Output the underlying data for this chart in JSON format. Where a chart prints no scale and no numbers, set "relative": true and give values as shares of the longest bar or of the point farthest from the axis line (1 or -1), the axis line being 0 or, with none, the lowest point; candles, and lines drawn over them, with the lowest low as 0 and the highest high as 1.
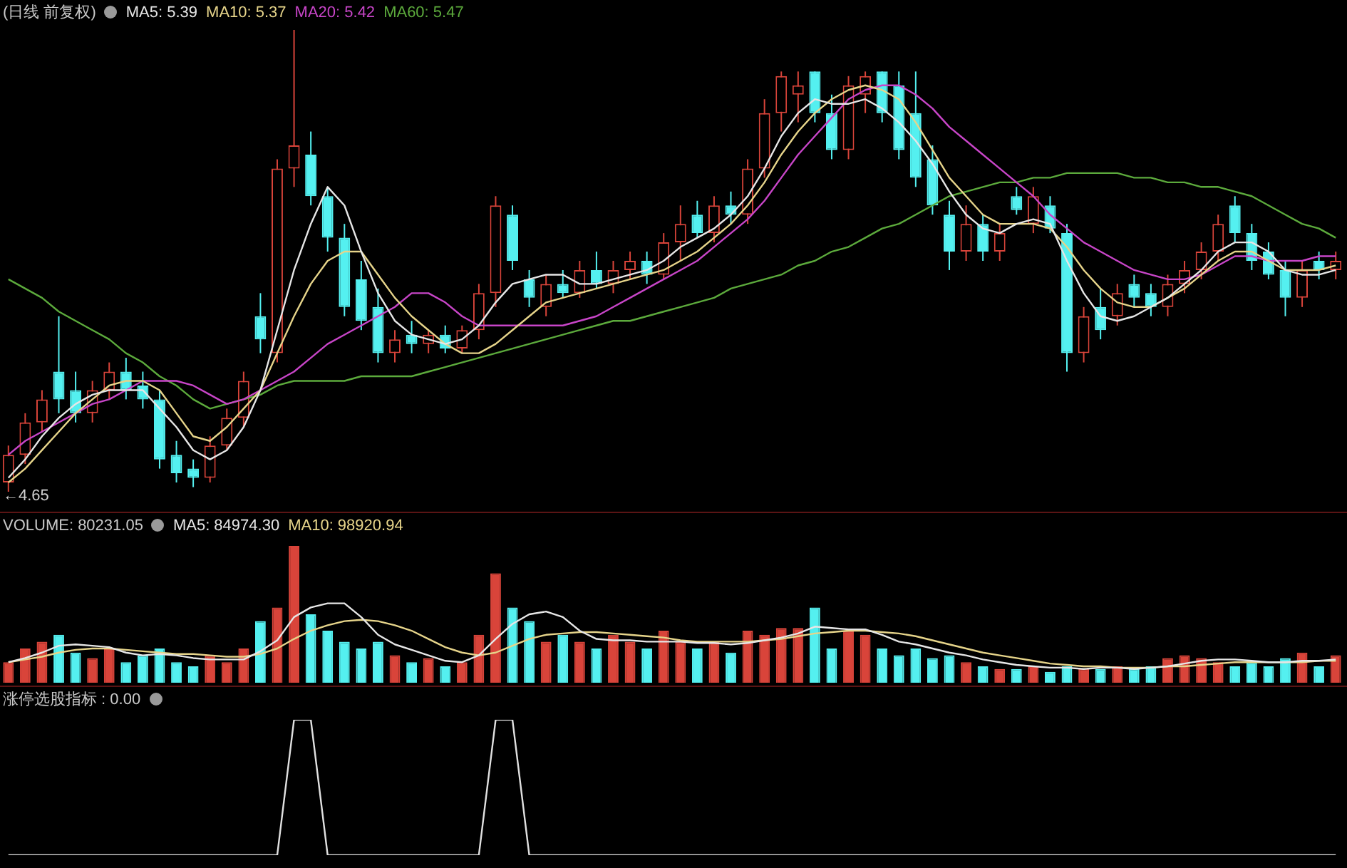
{
  "chart_data": [
    {
      "type": "candlestick",
      "title": "(日线 前复权)",
      "relative": true,
      "legend": "top left",
      "categories": [
        null,
        null,
        null,
        null,
        null,
        null,
        null,
        null,
        null,
        null,
        null,
        null,
        null,
        null,
        null,
        null,
        null,
        null,
        null,
        null,
        null,
        null,
        null,
        null,
        null,
        null,
        null,
        null,
        null,
        null,
        null,
        null,
        null,
        null,
        null,
        null,
        null,
        null,
        null,
        null,
        null,
        null,
        null,
        null,
        null,
        null,
        null,
        null,
        null,
        null,
        null,
        null,
        null,
        null,
        null,
        null,
        null,
        null,
        null,
        null,
        null,
        null,
        null,
        null,
        null,
        null,
        null,
        null,
        null,
        null,
        null,
        null,
        null,
        null,
        null,
        null,
        null,
        null,
        null,
        null
      ],
      "annotations": [
        "←4.65"
      ],
      "series": [
        {
          "ohlc": [
            [
              0.02,
              0.1,
              0.0,
              0.08
            ],
            [
              0.08,
              0.17,
              0.06,
              0.15
            ],
            [
              0.15,
              0.22,
              0.13,
              0.2
            ],
            [
              0.26,
              0.38,
              0.17,
              0.2
            ],
            [
              0.22,
              0.26,
              0.15,
              0.17
            ],
            [
              0.17,
              0.24,
              0.15,
              0.22
            ],
            [
              0.22,
              0.28,
              0.2,
              0.26
            ],
            [
              0.26,
              0.29,
              0.2,
              0.22
            ],
            [
              0.23,
              0.26,
              0.18,
              0.2
            ],
            [
              0.2,
              0.22,
              0.05,
              0.07
            ],
            [
              0.08,
              0.11,
              0.02,
              0.04
            ],
            [
              0.05,
              0.07,
              0.01,
              0.03
            ],
            [
              0.03,
              0.12,
              0.02,
              0.1
            ],
            [
              0.1,
              0.18,
              0.09,
              0.16
            ],
            [
              0.16,
              0.26,
              0.14,
              0.24
            ],
            [
              0.38,
              0.43,
              0.3,
              0.33
            ],
            [
              0.3,
              0.72,
              0.28,
              0.7
            ],
            [
              0.7,
              1.0,
              0.66,
              0.75
            ],
            [
              0.73,
              0.78,
              0.62,
              0.64
            ],
            [
              0.64,
              0.66,
              0.52,
              0.55
            ],
            [
              0.55,
              0.58,
              0.38,
              0.4
            ],
            [
              0.46,
              0.5,
              0.35,
              0.37
            ],
            [
              0.4,
              0.44,
              0.28,
              0.3
            ],
            [
              0.3,
              0.35,
              0.28,
              0.33
            ],
            [
              0.34,
              0.37,
              0.3,
              0.32
            ],
            [
              0.32,
              0.35,
              0.3,
              0.34
            ],
            [
              0.34,
              0.36,
              0.3,
              0.31
            ],
            [
              0.31,
              0.36,
              0.3,
              0.35
            ],
            [
              0.35,
              0.45,
              0.33,
              0.43
            ],
            [
              0.43,
              0.64,
              0.4,
              0.62
            ],
            [
              0.6,
              0.62,
              0.48,
              0.5
            ],
            [
              0.46,
              0.48,
              0.4,
              0.42
            ],
            [
              0.4,
              0.47,
              0.38,
              0.45
            ],
            [
              0.45,
              0.48,
              0.42,
              0.43
            ],
            [
              0.43,
              0.5,
              0.42,
              0.48
            ],
            [
              0.48,
              0.52,
              0.44,
              0.45
            ],
            [
              0.45,
              0.5,
              0.43,
              0.48
            ],
            [
              0.48,
              0.52,
              0.46,
              0.5
            ],
            [
              0.5,
              0.52,
              0.45,
              0.47
            ],
            [
              0.47,
              0.56,
              0.46,
              0.54
            ],
            [
              0.54,
              0.62,
              0.5,
              0.58
            ],
            [
              0.6,
              0.63,
              0.55,
              0.56
            ],
            [
              0.56,
              0.64,
              0.54,
              0.62
            ],
            [
              0.62,
              0.65,
              0.58,
              0.6
            ],
            [
              0.6,
              0.72,
              0.58,
              0.7
            ],
            [
              0.7,
              0.85,
              0.68,
              0.82
            ],
            [
              0.82,
              0.91,
              0.78,
              0.9
            ],
            [
              0.86,
              0.91,
              0.8,
              0.88
            ],
            [
              0.91,
              0.91,
              0.8,
              0.82
            ],
            [
              0.82,
              0.86,
              0.72,
              0.74
            ],
            [
              0.74,
              0.9,
              0.72,
              0.88
            ],
            [
              0.86,
              0.91,
              0.82,
              0.9
            ],
            [
              0.91,
              0.91,
              0.8,
              0.82
            ],
            [
              0.88,
              0.91,
              0.72,
              0.74
            ],
            [
              0.82,
              0.91,
              0.66,
              0.68
            ],
            [
              0.72,
              0.75,
              0.6,
              0.62
            ],
            [
              0.6,
              0.63,
              0.48,
              0.52
            ],
            [
              0.52,
              0.62,
              0.5,
              0.58
            ],
            [
              0.58,
              0.6,
              0.5,
              0.52
            ],
            [
              0.52,
              0.58,
              0.5,
              0.56
            ],
            [
              0.64,
              0.66,
              0.6,
              0.61
            ],
            [
              0.58,
              0.66,
              0.56,
              0.64
            ],
            [
              0.62,
              0.64,
              0.56,
              0.57
            ],
            [
              0.56,
              0.58,
              0.26,
              0.3
            ],
            [
              0.3,
              0.4,
              0.28,
              0.38
            ],
            [
              0.4,
              0.44,
              0.33,
              0.35
            ],
            [
              0.38,
              0.45,
              0.36,
              0.43
            ],
            [
              0.45,
              0.47,
              0.4,
              0.42
            ],
            [
              0.43,
              0.45,
              0.38,
              0.4
            ],
            [
              0.4,
              0.47,
              0.38,
              0.45
            ],
            [
              0.45,
              0.5,
              0.43,
              0.48
            ],
            [
              0.48,
              0.54,
              0.46,
              0.52
            ],
            [
              0.52,
              0.6,
              0.5,
              0.58
            ],
            [
              0.62,
              0.64,
              0.54,
              0.56
            ],
            [
              0.56,
              0.58,
              0.48,
              0.5
            ],
            [
              0.52,
              0.54,
              0.46,
              0.47
            ],
            [
              0.48,
              0.5,
              0.38,
              0.42
            ],
            [
              0.42,
              0.5,
              0.4,
              0.48
            ],
            [
              0.5,
              0.52,
              0.46,
              0.48
            ],
            [
              0.48,
              0.52,
              0.46,
              0.5
            ]
          ],
          "colors": [
            "#d9443a",
            "#d9443a",
            "#d9443a",
            "#54f0f0",
            "#54f0f0",
            "#d9443a",
            "#d9443a",
            "#54f0f0",
            "#54f0f0",
            "#54f0f0",
            "#54f0f0",
            "#54f0f0",
            "#d9443a",
            "#d9443a",
            "#d9443a",
            "#54f0f0",
            "#d9443a",
            "#d9443a",
            "#54f0f0",
            "#54f0f0",
            "#54f0f0",
            "#54f0f0",
            "#54f0f0",
            "#d9443a",
            "#54f0f0",
            "#d9443a",
            "#54f0f0",
            "#d9443a",
            "#d9443a",
            "#d9443a",
            "#54f0f0",
            "#54f0f0",
            "#d9443a",
            "#54f0f0",
            "#d9443a",
            "#54f0f0",
            "#d9443a",
            "#d9443a",
            "#54f0f0",
            "#d9443a",
            "#d9443a",
            "#54f0f0",
            "#d9443a",
            "#54f0f0",
            "#d9443a",
            "#d9443a",
            "#d9443a",
            "#d9443a",
            "#54f0f0",
            "#54f0f0",
            "#d9443a",
            "#d9443a",
            "#54f0f0",
            "#54f0f0",
            "#54f0f0",
            "#54f0f0",
            "#54f0f0",
            "#d9443a",
            "#54f0f0",
            "#d9443a",
            "#54f0f0",
            "#d9443a",
            "#54f0f0",
            "#54f0f0",
            "#d9443a",
            "#54f0f0",
            "#d9443a",
            "#54f0f0",
            "#54f0f0",
            "#d9443a",
            "#d9443a",
            "#d9443a",
            "#d9443a",
            "#54f0f0",
            "#54f0f0",
            "#54f0f0",
            "#54f0f0",
            "#d9443a",
            "#54f0f0",
            "#d9443a"
          ]
        },
        {
          "type": "line",
          "name": "MA5: 5.39",
          "color": "#e6e6e6",
          "values": [
            0.03,
            0.07,
            0.12,
            0.16,
            0.19,
            0.21,
            0.22,
            0.22,
            0.22,
            0.18,
            0.14,
            0.09,
            0.07,
            0.09,
            0.14,
            0.22,
            0.35,
            0.48,
            0.58,
            0.66,
            0.62,
            0.52,
            0.43,
            0.37,
            0.34,
            0.33,
            0.32,
            0.33,
            0.36,
            0.41,
            0.45,
            0.46,
            0.47,
            0.47,
            0.45,
            0.45,
            0.46,
            0.47,
            0.48,
            0.5,
            0.53,
            0.55,
            0.57,
            0.6,
            0.64,
            0.7,
            0.77,
            0.82,
            0.85,
            0.84,
            0.84,
            0.85,
            0.83,
            0.8,
            0.76,
            0.71,
            0.65,
            0.6,
            0.57,
            0.56,
            0.58,
            0.59,
            0.58,
            0.5,
            0.43,
            0.38,
            0.37,
            0.38,
            0.4,
            0.42,
            0.45,
            0.48,
            0.52,
            0.54,
            0.54,
            0.52,
            0.48,
            0.47,
            0.47,
            0.48
          ]
        },
        {
          "type": "line",
          "name": "MA10: 5.37",
          "color": "#e6d48a",
          "values": [
            0.02,
            0.05,
            0.09,
            0.13,
            0.17,
            0.2,
            0.23,
            0.24,
            0.24,
            0.22,
            0.17,
            0.12,
            0.11,
            0.14,
            0.18,
            0.22,
            0.3,
            0.38,
            0.45,
            0.5,
            0.52,
            0.52,
            0.47,
            0.42,
            0.38,
            0.35,
            0.32,
            0.3,
            0.3,
            0.32,
            0.35,
            0.38,
            0.41,
            0.42,
            0.43,
            0.44,
            0.45,
            0.46,
            0.47,
            0.48,
            0.5,
            0.52,
            0.55,
            0.58,
            0.62,
            0.67,
            0.73,
            0.78,
            0.82,
            0.85,
            0.87,
            0.88,
            0.87,
            0.85,
            0.8,
            0.74,
            0.68,
            0.64,
            0.6,
            0.58,
            0.58,
            0.58,
            0.57,
            0.53,
            0.48,
            0.44,
            0.41,
            0.4,
            0.4,
            0.42,
            0.44,
            0.47,
            0.5,
            0.52,
            0.52,
            0.5,
            0.48,
            0.48,
            0.48,
            0.49
          ]
        },
        {
          "type": "line",
          "name": "MA20: 5.42",
          "color": "#c845c8",
          "values": [
            0.08,
            0.11,
            0.13,
            0.15,
            0.17,
            0.19,
            0.2,
            0.22,
            0.24,
            0.24,
            0.24,
            0.23,
            0.21,
            0.19,
            0.2,
            0.22,
            0.24,
            0.26,
            0.29,
            0.32,
            0.34,
            0.36,
            0.38,
            0.4,
            0.43,
            0.43,
            0.41,
            0.38,
            0.36,
            0.36,
            0.36,
            0.36,
            0.36,
            0.36,
            0.37,
            0.38,
            0.4,
            0.42,
            0.44,
            0.46,
            0.48,
            0.5,
            0.53,
            0.56,
            0.59,
            0.63,
            0.68,
            0.73,
            0.77,
            0.81,
            0.85,
            0.87,
            0.88,
            0.88,
            0.86,
            0.83,
            0.79,
            0.76,
            0.73,
            0.7,
            0.67,
            0.64,
            0.6,
            0.57,
            0.54,
            0.52,
            0.5,
            0.48,
            0.47,
            0.46,
            0.46,
            0.47,
            0.49,
            0.51,
            0.51,
            0.5,
            0.5,
            0.5,
            0.51,
            0.51
          ]
        },
        {
          "type": "line",
          "name": "MA60: 5.47",
          "color": "#5caa3c",
          "values": [
            0.46,
            0.44,
            0.42,
            0.39,
            0.37,
            0.35,
            0.33,
            0.3,
            0.28,
            0.25,
            0.23,
            0.2,
            0.18,
            0.19,
            0.2,
            0.21,
            0.23,
            0.24,
            0.24,
            0.24,
            0.24,
            0.25,
            0.25,
            0.25,
            0.25,
            0.26,
            0.27,
            0.28,
            0.29,
            0.3,
            0.31,
            0.32,
            0.33,
            0.34,
            0.35,
            0.36,
            0.37,
            0.37,
            0.38,
            0.39,
            0.4,
            0.41,
            0.42,
            0.44,
            0.45,
            0.46,
            0.47,
            0.49,
            0.5,
            0.52,
            0.53,
            0.55,
            0.57,
            0.58,
            0.6,
            0.62,
            0.64,
            0.65,
            0.66,
            0.67,
            0.67,
            0.68,
            0.68,
            0.69,
            0.69,
            0.69,
            0.69,
            0.68,
            0.68,
            0.67,
            0.67,
            0.66,
            0.66,
            0.65,
            0.64,
            0.62,
            0.6,
            0.58,
            0.57,
            0.55
          ]
        }
      ]
    },
    {
      "type": "bar",
      "title": "VOLUME: 80231.05",
      "relative": true,
      "legend": "top left",
      "categories": [
        null,
        null,
        null,
        null,
        null,
        null,
        null,
        null,
        null,
        null,
        null,
        null,
        null,
        null,
        null,
        null,
        null,
        null,
        null,
        null,
        null,
        null,
        null,
        null,
        null,
        null,
        null,
        null,
        null,
        null,
        null,
        null,
        null,
        null,
        null,
        null,
        null,
        null,
        null,
        null,
        null,
        null,
        null,
        null,
        null,
        null,
        null,
        null,
        null,
        null,
        null,
        null,
        null,
        null,
        null,
        null,
        null,
        null,
        null,
        null,
        null,
        null,
        null,
        null,
        null,
        null,
        null,
        null,
        null,
        null,
        null,
        null,
        null,
        null,
        null,
        null,
        null,
        null,
        null,
        null
      ],
      "series": [
        {
          "values": [
            0.15,
            0.25,
            0.3,
            0.35,
            0.22,
            0.18,
            0.25,
            0.15,
            0.2,
            0.25,
            0.15,
            0.12,
            0.2,
            0.15,
            0.25,
            0.45,
            0.55,
            1.0,
            0.5,
            0.38,
            0.3,
            0.25,
            0.3,
            0.2,
            0.15,
            0.18,
            0.12,
            0.15,
            0.35,
            0.8,
            0.55,
            0.45,
            0.3,
            0.35,
            0.3,
            0.25,
            0.35,
            0.3,
            0.25,
            0.38,
            0.3,
            0.25,
            0.3,
            0.22,
            0.38,
            0.35,
            0.4,
            0.4,
            0.55,
            0.25,
            0.38,
            0.35,
            0.25,
            0.2,
            0.25,
            0.18,
            0.2,
            0.15,
            0.12,
            0.1,
            0.1,
            0.12,
            0.08,
            0.12,
            0.1,
            0.1,
            0.12,
            0.1,
            0.12,
            0.18,
            0.2,
            0.18,
            0.15,
            0.12,
            0.15,
            0.12,
            0.18,
            0.22,
            0.12,
            0.2
          ],
          "colors": [
            "#d9443a",
            "#d9443a",
            "#d9443a",
            "#54f0f0",
            "#54f0f0",
            "#d9443a",
            "#d9443a",
            "#54f0f0",
            "#54f0f0",
            "#54f0f0",
            "#54f0f0",
            "#54f0f0",
            "#d9443a",
            "#d9443a",
            "#d9443a",
            "#54f0f0",
            "#d9443a",
            "#d9443a",
            "#54f0f0",
            "#54f0f0",
            "#54f0f0",
            "#54f0f0",
            "#54f0f0",
            "#d9443a",
            "#54f0f0",
            "#d9443a",
            "#54f0f0",
            "#d9443a",
            "#d9443a",
            "#d9443a",
            "#54f0f0",
            "#54f0f0",
            "#d9443a",
            "#54f0f0",
            "#d9443a",
            "#54f0f0",
            "#d9443a",
            "#d9443a",
            "#54f0f0",
            "#d9443a",
            "#d9443a",
            "#54f0f0",
            "#d9443a",
            "#54f0f0",
            "#d9443a",
            "#d9443a",
            "#d9443a",
            "#d9443a",
            "#54f0f0",
            "#54f0f0",
            "#d9443a",
            "#d9443a",
            "#54f0f0",
            "#54f0f0",
            "#54f0f0",
            "#54f0f0",
            "#54f0f0",
            "#d9443a",
            "#54f0f0",
            "#d9443a",
            "#54f0f0",
            "#d9443a",
            "#54f0f0",
            "#54f0f0",
            "#d9443a",
            "#54f0f0",
            "#d9443a",
            "#54f0f0",
            "#54f0f0",
            "#d9443a",
            "#d9443a",
            "#d9443a",
            "#d9443a",
            "#54f0f0",
            "#54f0f0",
            "#54f0f0",
            "#54f0f0",
            "#d9443a",
            "#54f0f0",
            "#d9443a"
          ]
        },
        {
          "type": "line",
          "name": "MA5: 84974.30",
          "color": "#e6e6e6",
          "values": [
            0.15,
            0.18,
            0.22,
            0.27,
            0.28,
            0.27,
            0.26,
            0.22,
            0.2,
            0.21,
            0.2,
            0.18,
            0.17,
            0.17,
            0.17,
            0.23,
            0.31,
            0.48,
            0.55,
            0.58,
            0.58,
            0.48,
            0.35,
            0.28,
            0.24,
            0.2,
            0.16,
            0.15,
            0.2,
            0.32,
            0.43,
            0.5,
            0.52,
            0.48,
            0.38,
            0.32,
            0.31,
            0.31,
            0.3,
            0.3,
            0.3,
            0.29,
            0.29,
            0.28,
            0.29,
            0.31,
            0.33,
            0.36,
            0.41,
            0.4,
            0.39,
            0.39,
            0.35,
            0.3,
            0.28,
            0.25,
            0.22,
            0.2,
            0.17,
            0.15,
            0.13,
            0.12,
            0.11,
            0.11,
            0.1,
            0.11,
            0.11,
            0.1,
            0.11,
            0.12,
            0.14,
            0.16,
            0.17,
            0.17,
            0.16,
            0.15,
            0.15,
            0.16,
            0.16,
            0.17
          ]
        },
        {
          "type": "line",
          "name": "MA10: 98920.94",
          "color": "#e6d48a",
          "values": [
            0.15,
            0.17,
            0.19,
            0.22,
            0.24,
            0.25,
            0.25,
            0.24,
            0.23,
            0.22,
            0.21,
            0.21,
            0.2,
            0.19,
            0.19,
            0.21,
            0.25,
            0.32,
            0.38,
            0.42,
            0.45,
            0.46,
            0.45,
            0.42,
            0.38,
            0.32,
            0.26,
            0.22,
            0.2,
            0.22,
            0.27,
            0.32,
            0.35,
            0.36,
            0.37,
            0.37,
            0.36,
            0.35,
            0.34,
            0.33,
            0.31,
            0.3,
            0.3,
            0.3,
            0.3,
            0.31,
            0.32,
            0.34,
            0.36,
            0.37,
            0.38,
            0.38,
            0.37,
            0.36,
            0.34,
            0.31,
            0.28,
            0.25,
            0.22,
            0.2,
            0.18,
            0.16,
            0.14,
            0.13,
            0.12,
            0.12,
            0.11,
            0.11,
            0.11,
            0.12,
            0.12,
            0.13,
            0.14,
            0.15,
            0.15,
            0.15,
            0.15,
            0.15,
            0.16,
            0.16
          ]
        }
      ]
    },
    {
      "type": "line",
      "title": "涨停选股指标 : 0.00",
      "relative": true,
      "categories": [
        null,
        null,
        null,
        null,
        null,
        null,
        null,
        null,
        null,
        null,
        null,
        null,
        null,
        null,
        null,
        null,
        null,
        null,
        null,
        null,
        null,
        null,
        null,
        null,
        null,
        null,
        null,
        null,
        null,
        null,
        null,
        null,
        null,
        null,
        null,
        null,
        null,
        null,
        null,
        null,
        null,
        null,
        null,
        null,
        null,
        null,
        null,
        null,
        null,
        null,
        null,
        null,
        null,
        null,
        null,
        null,
        null,
        null,
        null,
        null,
        null,
        null,
        null,
        null,
        null,
        null,
        null,
        null,
        null,
        null,
        null,
        null,
        null,
        null,
        null,
        null,
        null,
        null,
        null,
        null
      ],
      "series": [
        {
          "color": "#e0e0e0",
          "values": [
            0,
            0,
            0,
            0,
            0,
            0,
            0,
            0,
            0,
            0,
            0,
            0,
            0,
            0,
            0,
            0,
            0,
            1,
            1,
            0,
            0,
            0,
            0,
            0,
            0,
            0,
            0,
            0,
            0,
            1,
            1,
            0,
            0,
            0,
            0,
            0,
            0,
            0,
            0,
            0,
            0,
            0,
            0,
            0,
            0,
            0,
            0,
            0,
            0,
            0,
            0,
            0,
            0,
            0,
            0,
            0,
            0,
            0,
            0,
            0,
            0,
            0,
            0,
            0,
            0,
            0,
            0,
            0,
            0,
            0,
            0,
            0,
            0,
            0,
            0,
            0,
            0,
            0,
            0,
            0
          ]
        }
      ]
    }
  ]
}
